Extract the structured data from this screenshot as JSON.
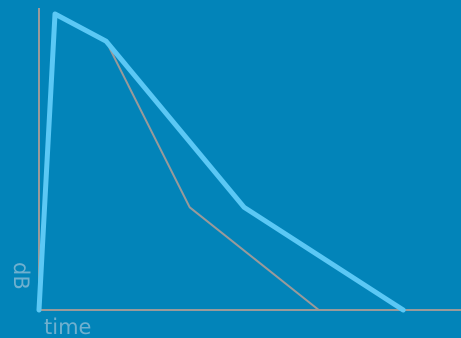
{
  "chart_data": {
    "type": "line",
    "xlabel": "time",
    "ylabel": "dB",
    "grid": false,
    "legend": "none",
    "xlim": [
      0,
      100
    ],
    "ylim": [
      0,
      100
    ],
    "series": [
      {
        "color": "#9A9A9A",
        "x": [
          0,
          3.8,
          15.9,
          35.7,
          66.3
        ],
        "y": [
          0,
          98,
          89,
          34,
          0
        ]
      },
      {
        "color": "#5BC8F5",
        "x": [
          0,
          3.8,
          15.9,
          48.6,
          86.3
        ],
        "y": [
          0,
          98,
          89,
          34,
          0
        ]
      }
    ]
  }
}
